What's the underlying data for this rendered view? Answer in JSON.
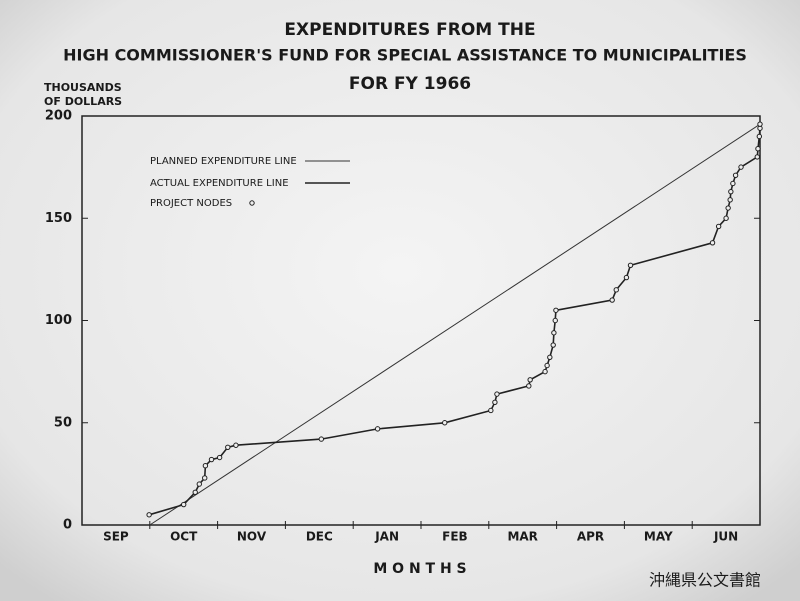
{
  "chart_data": {
    "type": "line",
    "title": [
      "EXPENDITURES FROM THE",
      "HIGH COMMISSIONER'S FUND FOR SPECIAL ASSISTANCE TO MUNICIPALITIES",
      "FOR FY 1966"
    ],
    "y_label": [
      "THOUSANDS",
      "OF DOLLARS"
    ],
    "x_label": "M O N T H S",
    "categories": [
      "SEP",
      "OCT",
      "NOV",
      "DEC",
      "JAN",
      "FEB",
      "MAR",
      "APR",
      "MAY",
      "JUN"
    ],
    "ylim": [
      0,
      200
    ],
    "yticks": [
      0,
      50,
      100,
      150,
      200
    ],
    "right_ticks": [
      50,
      100,
      150
    ],
    "series": [
      {
        "name": "PLANNED EXPENDITURE LINE",
        "color": "#333333",
        "x": [
          1,
          10
        ],
        "values": [
          0,
          196
        ],
        "width": 1,
        "markers": false
      },
      {
        "name": "ACTUAL EXPENDITURE LINE",
        "color": "#222222",
        "markers": true,
        "x": [
          0.99,
          1.5,
          1.67,
          1.73,
          1.81,
          1.82,
          1.91,
          2.03,
          2.15,
          2.27,
          3.53,
          4.36,
          5.35,
          6.03,
          6.09,
          6.12,
          6.59,
          6.61,
          6.83,
          6.86,
          6.9,
          6.95,
          6.96,
          6.98,
          6.99,
          7.82,
          7.88,
          8.03,
          8.09,
          9.3,
          9.39,
          9.5,
          9.53,
          9.56,
          9.57,
          9.6,
          9.64,
          9.72,
          9.96,
          9.97,
          9.99,
          10.0,
          10.0
        ],
        "values": [
          5,
          10,
          16,
          20,
          23,
          29,
          32,
          33,
          38,
          39,
          42,
          47,
          50,
          56,
          60,
          64,
          68,
          71,
          75,
          78,
          82,
          88,
          94,
          100,
          105,
          110,
          115,
          121,
          127,
          138,
          146,
          150,
          155,
          159,
          163,
          167,
          171,
          175,
          180,
          184,
          190,
          194,
          196
        ]
      }
    ],
    "nodes_label": "PROJECT NODES",
    "watermark": "沖縄県公文書館"
  }
}
